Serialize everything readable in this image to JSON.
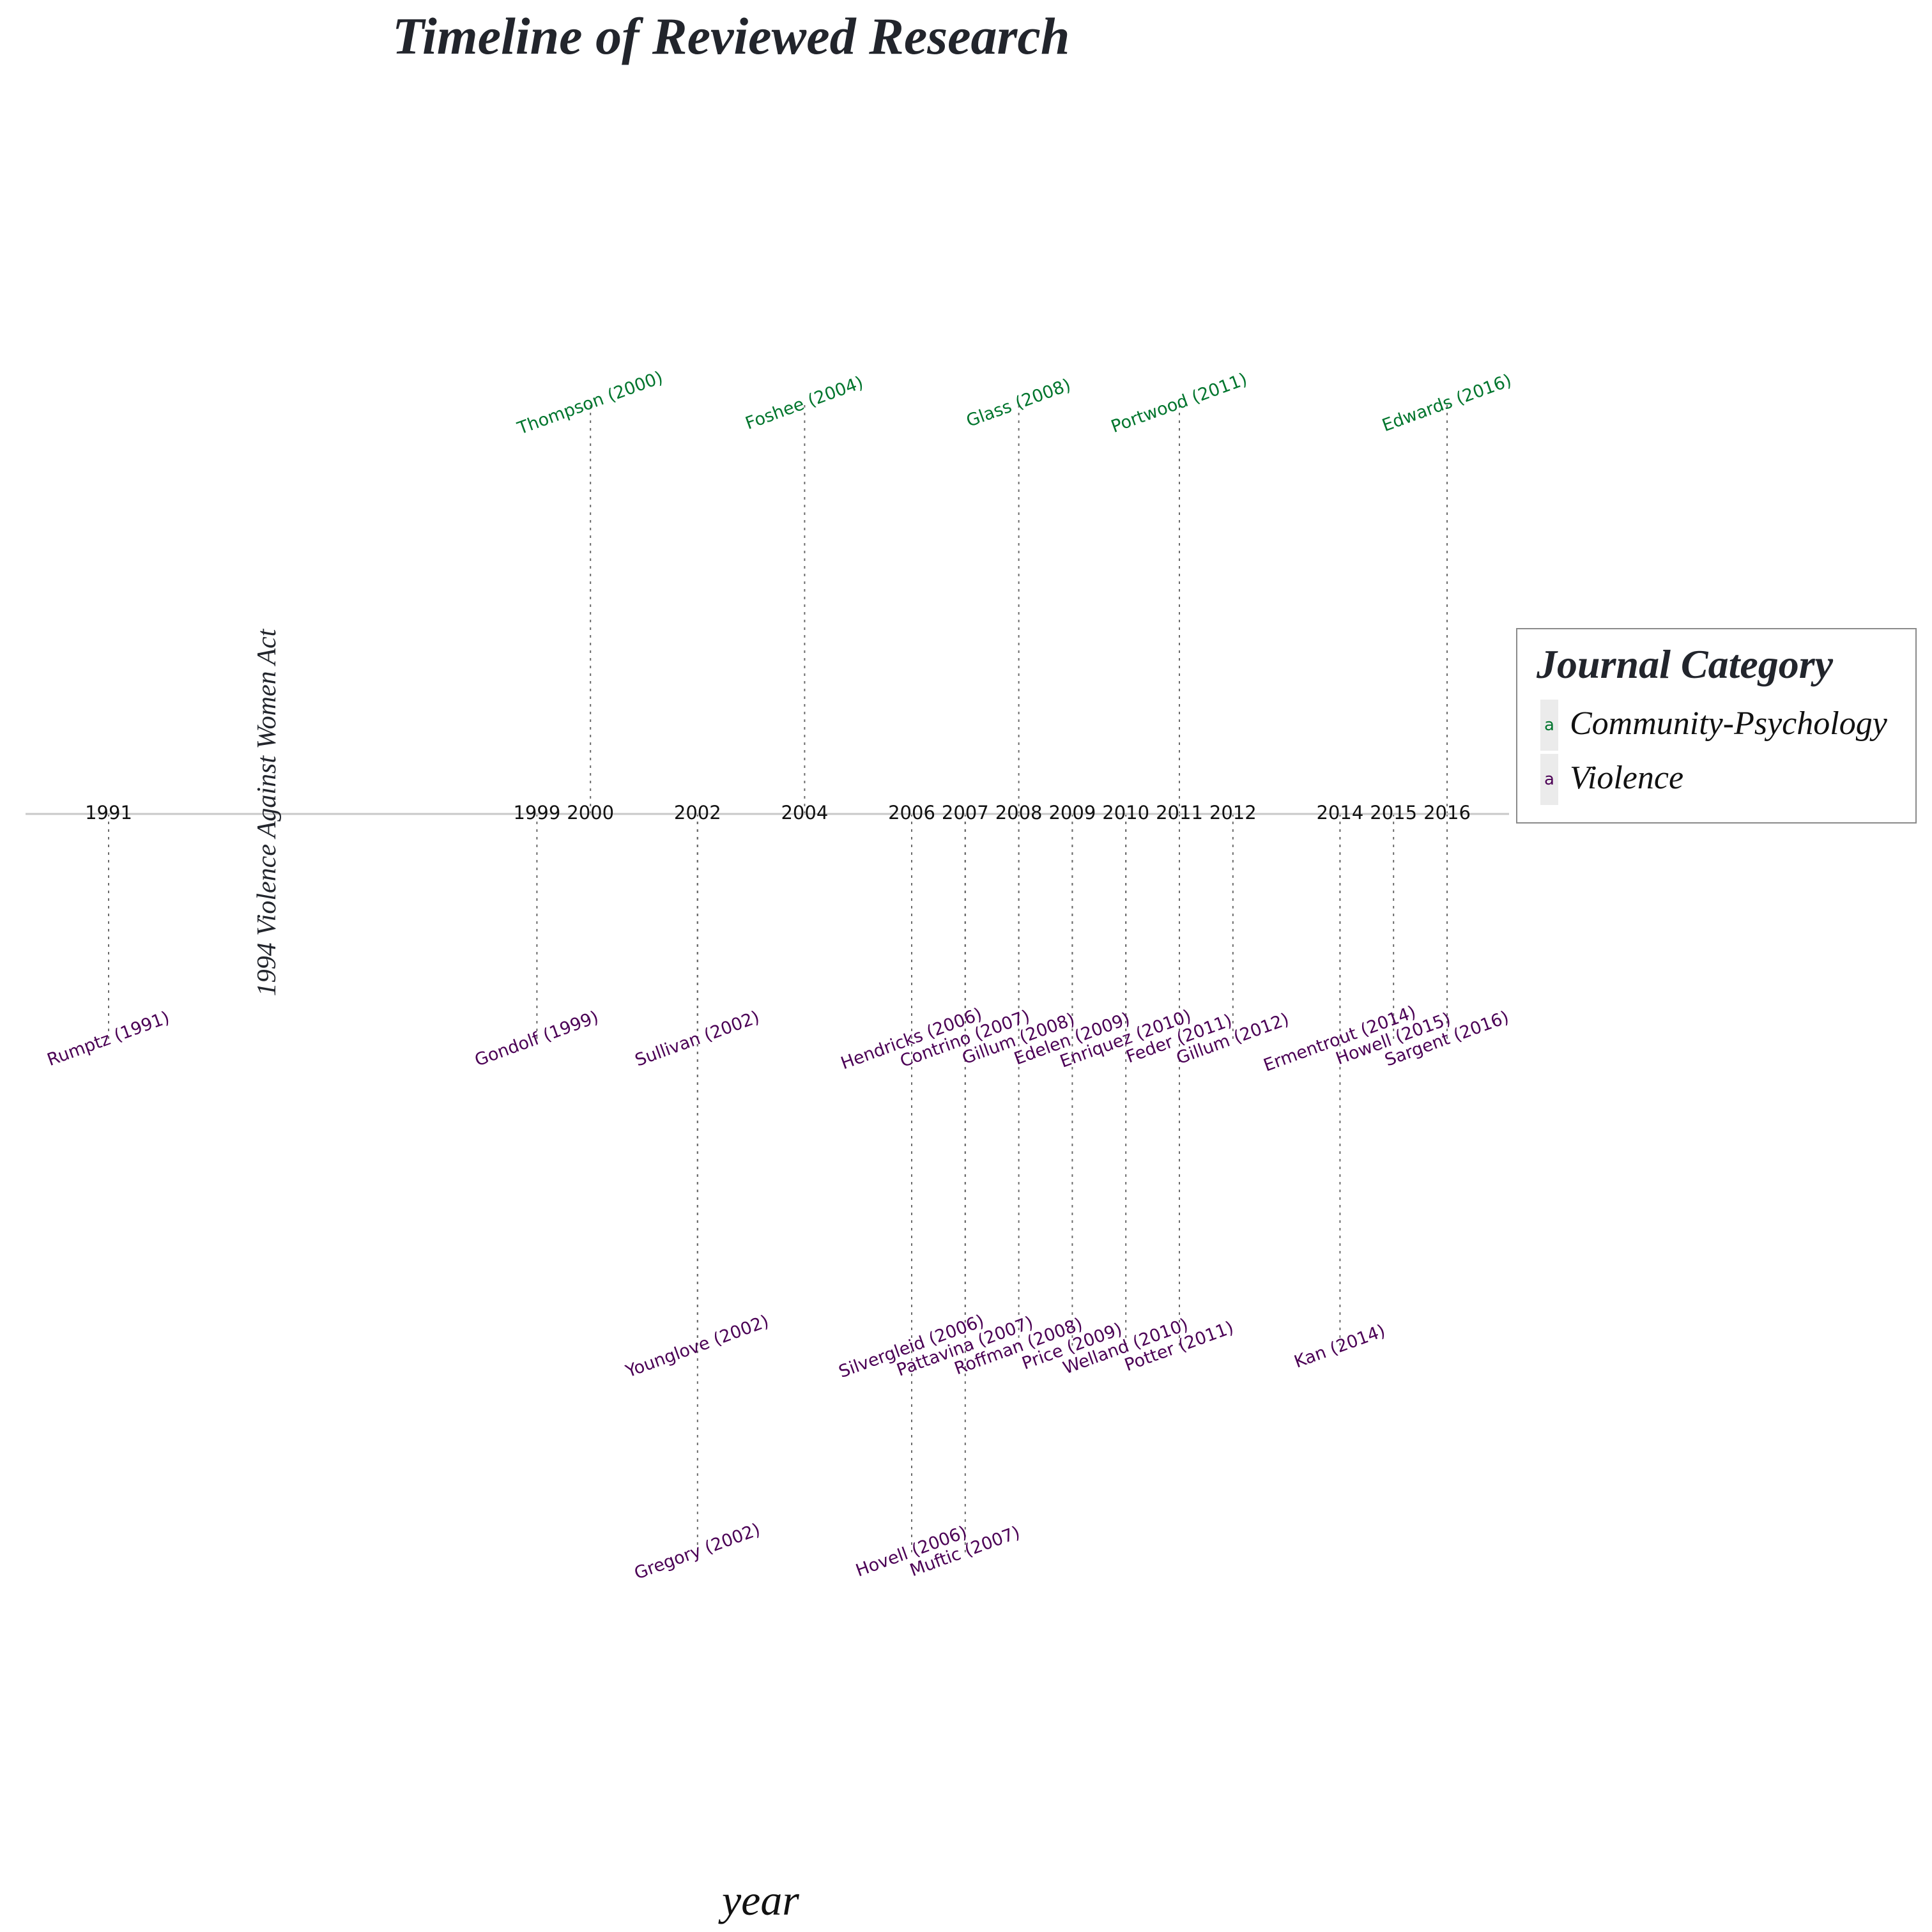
{
  "chart_data": {
    "type": "timeline",
    "title": "Timeline of Reviewed Research",
    "xlabel": "year",
    "xlim": [
      1989.5,
      2017.4
    ],
    "ticks": [
      1991,
      1999,
      2000,
      2002,
      2004,
      2006,
      2007,
      2008,
      2009,
      2010,
      2011,
      2012,
      2014,
      2015,
      2016
    ],
    "grid": false,
    "legend": {
      "title": "Journal Category",
      "position": "right",
      "entries": [
        {
          "name": "Community-Psychology",
          "color": "#00752d",
          "key_glyph": "a"
        },
        {
          "name": "Violence",
          "color": "#4b0055",
          "key_glyph": "a"
        }
      ]
    },
    "annotation": {
      "year": 1994,
      "text": "1994 Violence Against Women Act"
    },
    "y_scale_note": "labels above axis are Community-Psychology studies; below axis are Violence studies, stacked in rows",
    "studies": [
      {
        "label": "Thompson (2000)",
        "year": 2000,
        "category": "Community-Psychology",
        "level": 1
      },
      {
        "label": "Foshee (2004)",
        "year": 2004,
        "category": "Community-Psychology",
        "level": 1
      },
      {
        "label": "Glass (2008)",
        "year": 2008,
        "category": "Community-Psychology",
        "level": 1
      },
      {
        "label": "Portwood (2011)",
        "year": 2011,
        "category": "Community-Psychology",
        "level": 1
      },
      {
        "label": "Edwards (2016)",
        "year": 2016,
        "category": "Community-Psychology",
        "level": 1
      },
      {
        "label": "Rumptz (1991)",
        "year": 1991,
        "category": "Violence",
        "level": -0.55
      },
      {
        "label": "Gondolf (1999)",
        "year": 1999,
        "category": "Violence",
        "level": -0.55
      },
      {
        "label": "Sullivan (2002)",
        "year": 2002,
        "category": "Violence",
        "level": -0.55
      },
      {
        "label": "Younglove (2002)",
        "year": 2002,
        "category": "Violence",
        "level": -1.3
      },
      {
        "label": "Gregory (2002)",
        "year": 2002,
        "category": "Violence",
        "level": -1.8
      },
      {
        "label": "Hendricks (2006)",
        "year": 2006,
        "category": "Violence",
        "level": -0.55
      },
      {
        "label": "Silvergleid (2006)",
        "year": 2006,
        "category": "Violence",
        "level": -1.3
      },
      {
        "label": "Hovell (2006)",
        "year": 2006,
        "category": "Violence",
        "level": -1.8
      },
      {
        "label": "Contrino (2007)",
        "year": 2007,
        "category": "Violence",
        "level": -0.55
      },
      {
        "label": "Pattavina (2007)",
        "year": 2007,
        "category": "Violence",
        "level": -1.3
      },
      {
        "label": "Muftic (2007)",
        "year": 2007,
        "category": "Violence",
        "level": -1.8
      },
      {
        "label": "Gillum (2008)",
        "year": 2008,
        "category": "Violence",
        "level": -0.55
      },
      {
        "label": "Roffman (2008)",
        "year": 2008,
        "category": "Violence",
        "level": -1.3
      },
      {
        "label": "Edelen (2009)",
        "year": 2009,
        "category": "Violence",
        "level": -0.55
      },
      {
        "label": "Price (2009)",
        "year": 2009,
        "category": "Violence",
        "level": -1.3
      },
      {
        "label": "Enriquez (2010)",
        "year": 2010,
        "category": "Violence",
        "level": -0.55
      },
      {
        "label": "Welland (2010)",
        "year": 2010,
        "category": "Violence",
        "level": -1.3
      },
      {
        "label": "Feder (2011)",
        "year": 2011,
        "category": "Violence",
        "level": -0.55
      },
      {
        "label": "Potter (2011)",
        "year": 2011,
        "category": "Violence",
        "level": -1.3
      },
      {
        "label": "Gillum (2012)",
        "year": 2012,
        "category": "Violence",
        "level": -0.55
      },
      {
        "label": "Ermentrout (2014)",
        "year": 2014,
        "category": "Violence",
        "level": -0.55
      },
      {
        "label": "Kan (2014)",
        "year": 2014,
        "category": "Violence",
        "level": -1.3
      },
      {
        "label": "Howell (2015)",
        "year": 2015,
        "category": "Violence",
        "level": -0.55
      },
      {
        "label": "Sargent (2016)",
        "year": 2016,
        "category": "Violence",
        "level": -0.55
      }
    ]
  }
}
